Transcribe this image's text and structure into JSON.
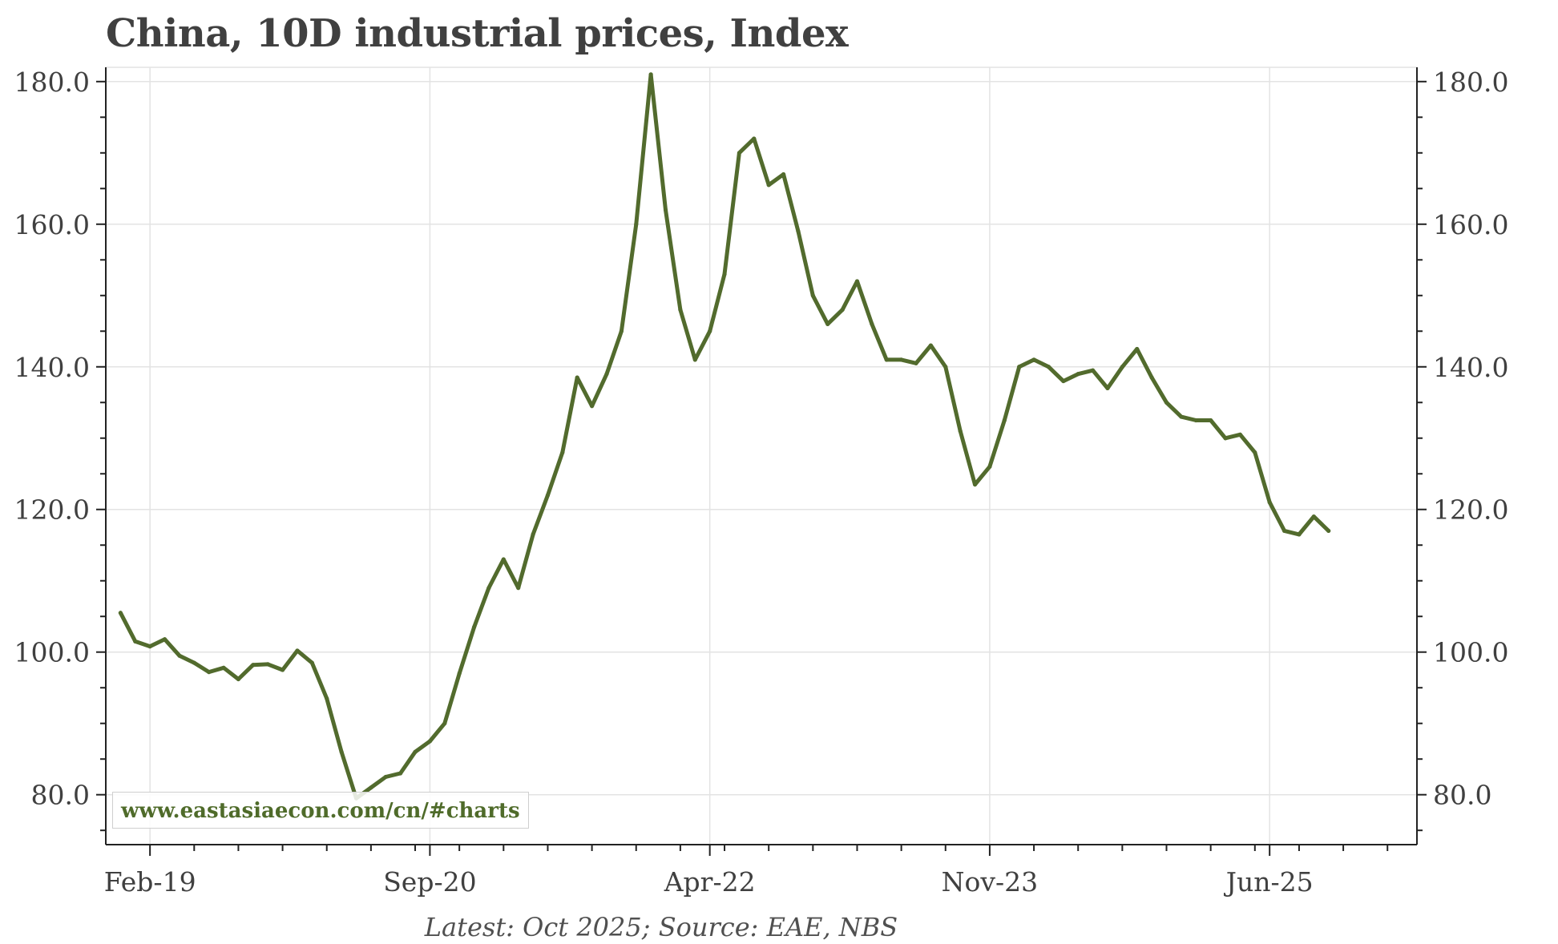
{
  "chart_data": {
    "type": "line",
    "title": "China, 10D industrial prices, Index",
    "xlabel": "",
    "ylabel": "",
    "source": "Latest: Oct 2025; Source: EAE, NBS",
    "watermark": "www.eastasiaecon.com/cn/#charts",
    "line_color": "#526b2d",
    "ylim": [
      73,
      182
    ],
    "yticks": [
      80.0,
      100.0,
      120.0,
      140.0,
      160.0,
      180.0
    ],
    "ytick_labels": [
      "80.0",
      "100.0",
      "120.0",
      "140.0",
      "160.0",
      "180.0"
    ],
    "xlim": [
      "2018-11",
      "2026-04"
    ],
    "xticks": [
      "2019-02",
      "2020-09",
      "2022-04",
      "2023-11",
      "2025-06"
    ],
    "xtick_labels": [
      "Feb-19",
      "Sep-20",
      "Apr-22",
      "Nov-23",
      "Jun-25"
    ],
    "grid": true,
    "legend": "none",
    "series": [
      {
        "x": [
          "2018-12",
          "2019-01",
          "2019-02",
          "2019-03",
          "2019-04",
          "2019-05",
          "2019-06",
          "2019-07",
          "2019-08",
          "2019-09",
          "2019-10",
          "2019-11",
          "2019-12",
          "2020-01",
          "2020-02",
          "2020-03",
          "2020-04",
          "2020-05",
          "2020-06",
          "2020-07",
          "2020-08",
          "2020-09",
          "2020-10",
          "2020-11",
          "2020-12",
          "2021-01",
          "2021-02",
          "2021-03",
          "2021-04",
          "2021-05",
          "2021-06",
          "2021-07",
          "2021-08",
          "2021-09",
          "2021-10",
          "2021-11",
          "2021-12",
          "2022-01",
          "2022-02",
          "2022-03",
          "2022-04",
          "2022-05",
          "2022-06",
          "2022-07",
          "2022-08",
          "2022-09",
          "2022-10",
          "2022-11",
          "2022-12",
          "2023-01",
          "2023-02",
          "2023-03",
          "2023-04",
          "2023-05",
          "2023-06",
          "2023-07",
          "2023-08",
          "2023-09",
          "2023-10",
          "2023-11",
          "2023-12",
          "2024-01",
          "2024-02",
          "2024-03",
          "2024-04",
          "2024-05",
          "2024-06",
          "2024-07",
          "2024-08",
          "2024-09",
          "2024-10",
          "2024-11",
          "2024-12",
          "2025-01",
          "2025-02",
          "2025-03",
          "2025-04",
          "2025-05",
          "2025-06",
          "2025-07",
          "2025-08",
          "2025-09",
          "2025-10"
        ],
        "y": [
          105.5,
          101.5,
          100.8,
          101.8,
          99.5,
          98.5,
          97.2,
          97.8,
          96.2,
          98.2,
          98.3,
          97.5,
          100.2,
          98.5,
          93.5,
          86.0,
          79.5,
          81.0,
          82.5,
          83.0,
          86.0,
          87.5,
          90.0,
          97.0,
          103.5,
          109.0,
          113.0,
          109.0,
          116.5,
          122.0,
          128.0,
          138.5,
          134.5,
          139.0,
          145.0,
          160.0,
          181.0,
          162.0,
          148.0,
          141.0,
          145.0,
          153.0,
          170.0,
          172.0,
          165.5,
          167.0,
          159.0,
          150.0,
          146.0,
          148.0,
          152.0,
          146.0,
          141.0,
          141.0,
          140.5,
          143.0,
          140.0,
          131.0,
          123.5,
          126.0,
          132.5,
          140.0,
          141.0,
          140.0,
          138.0,
          139.0,
          139.5,
          137.0,
          140.0,
          142.5,
          138.5,
          135.0,
          133.0,
          132.5,
          132.5,
          130.0,
          130.5,
          128.0,
          121.0,
          117.0,
          116.5,
          119.0,
          117.0
        ]
      }
    ]
  }
}
